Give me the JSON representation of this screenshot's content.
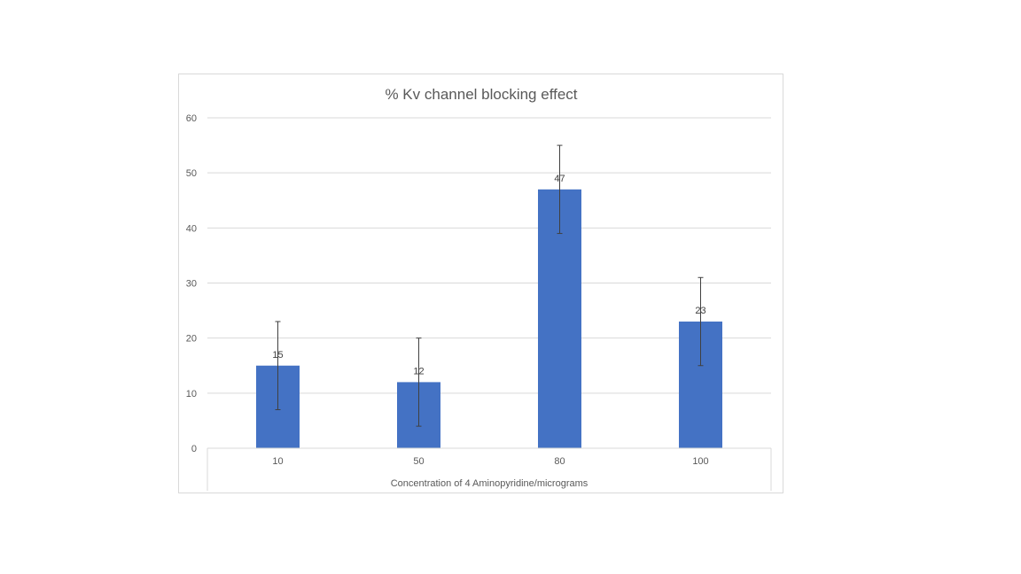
{
  "chart_data": {
    "type": "bar",
    "title": "% Kv channel blocking effect",
    "xlabel": "Concentration of 4 Aminopyridine/micrograms",
    "ylabel": "",
    "categories": [
      "10",
      "50",
      "80",
      "100"
    ],
    "values": [
      15,
      12,
      47,
      23
    ],
    "error": [
      8,
      8,
      8,
      8
    ],
    "data_labels": [
      "15",
      "12",
      "47",
      "23"
    ],
    "ylim": [
      0,
      60
    ],
    "yticks": [
      0,
      10,
      20,
      30,
      40,
      50,
      60
    ],
    "grid": true,
    "legend": "none",
    "colors": {
      "bar": "#4472C4",
      "grid": "#d9d9d9",
      "error_bar": "#404040"
    }
  }
}
